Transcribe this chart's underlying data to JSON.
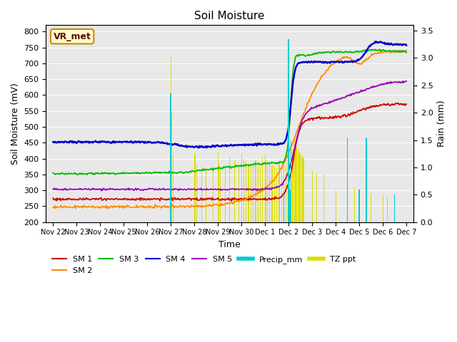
{
  "title": "Soil Moisture",
  "ylabel_left": "Soil Moisture (mV)",
  "ylabel_right": "Rain (mm)",
  "xlabel": "Time",
  "figure_bg": "#ffffff",
  "plot_bg_color": "#e8e8e8",
  "ylim_left": [
    200,
    820
  ],
  "ylim_right": [
    0.0,
    3.6
  ],
  "sm1_color": "#cc0000",
  "sm2_color": "#ff8c00",
  "sm3_color": "#00bb00",
  "sm4_color": "#0000cc",
  "sm5_color": "#9900bb",
  "precip_color": "#00cccc",
  "tzppt_color": "#dddd00",
  "legend_box_edge": "#cc8800",
  "legend_box_face": "#ffffcc",
  "legend_box_text": "VR_met",
  "legend_text_color": "#660000",
  "x_tick_labels": [
    "Nov 22",
    "Nov 23",
    "Nov 24",
    "Nov 25",
    "Nov 26",
    "Nov 27",
    "Nov 28",
    "Nov 29",
    "Nov 30",
    "Dec 1",
    "Dec 2",
    "Dec 3",
    "Dec 4",
    "Dec 5",
    "Dec 6",
    "Dec 7"
  ],
  "n_points": 500
}
